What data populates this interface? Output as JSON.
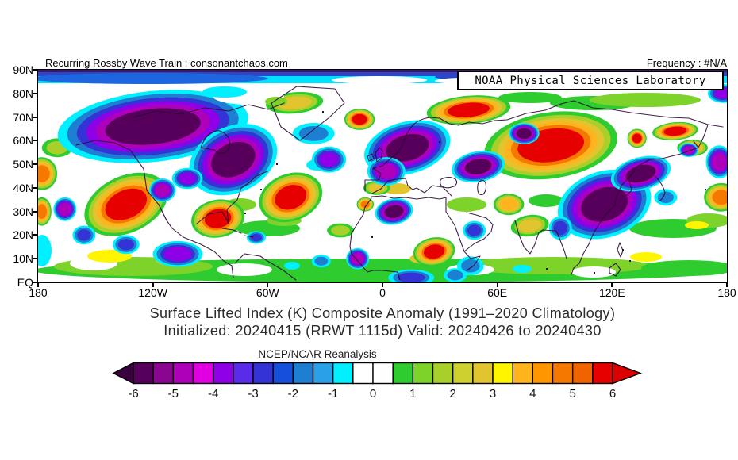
{
  "header": {
    "left_credit": "Recurring Rossby Wave Train : consonantchaos.com",
    "right_frequency": "Frequency : #N/A"
  },
  "map": {
    "credit_box": "NOAA Physical Sciences Laboratory",
    "lat_ticks": [
      "90N",
      "80N",
      "70N",
      "60N",
      "50N",
      "40N",
      "30N",
      "20N",
      "10N",
      "EQ"
    ],
    "lon_ticks": [
      "180",
      "120W",
      "60W",
      "0",
      "60E",
      "120E",
      "180"
    ]
  },
  "titles": {
    "line1": "Surface Lifted Index (K) Composite Anomaly (1991–2020 Climatology)",
    "line2": "Initialized: 20240415 (RRWT 1115d) Valid: 20240426 to 20240430"
  },
  "colorbar": {
    "label": "NCEP/NCAR Reanalysis",
    "ticks": [
      "-6",
      "-5",
      "-4",
      "-3",
      "-2",
      "-1",
      "0",
      "1",
      "2",
      "3",
      "4",
      "5",
      "6"
    ],
    "segments": [
      "#56005C",
      "#8A0690",
      "#AE00B8",
      "#E100E1",
      "#8F00E8",
      "#5A2BE8",
      "#3333D6",
      "#1450DC",
      "#1E7ED2",
      "#2AA0E8",
      "#00F0FF",
      "#FFFFFF",
      "#FFFFFF",
      "#2ECC2E",
      "#7ED32A",
      "#A9CF2A",
      "#CDD02E",
      "#E2C52E",
      "#FFF500",
      "#FFB41E",
      "#FF9600",
      "#F57800",
      "#F06400",
      "#E60000"
    ],
    "arrow_left_color": "#3A0040",
    "arrow_right_color": "#DC0000"
  },
  "chart_data": {
    "type": "heatmap",
    "title": "Surface Lifted Index (K) Composite Anomaly (1991–2020 Climatology)",
    "subtitle": "Initialized: 20240415 (RRWT 1115d) Valid: 20240426 to 20240430",
    "units": "K",
    "source_label": "NCEP/NCAR Reanalysis",
    "x_axis": {
      "ticks": [
        "180",
        "120W",
        "60W",
        "0",
        "60E",
        "120E",
        "180"
      ],
      "range_deg": [
        -180,
        180
      ]
    },
    "y_axis": {
      "ticks": [
        "EQ",
        "10N",
        "20N",
        "30N",
        "40N",
        "50N",
        "60N",
        "70N",
        "80N",
        "90N"
      ],
      "range_deg": [
        0,
        90
      ]
    },
    "scale": {
      "min": -6,
      "max": 6,
      "step": 0.5
    },
    "anomaly_features": [
      {
        "name": "NE Pacific warm",
        "lon": -134,
        "lat": 33,
        "value": 6,
        "rlon": 23,
        "rlat": 12,
        "rot": -25
      },
      {
        "name": "Gulf of Mexico / SE United States warm",
        "lon": -86,
        "lat": 27,
        "value": 6,
        "rlon": 14,
        "rlat": 8,
        "rot": -10
      },
      {
        "name": "Central North Atlantic warm",
        "lon": -48,
        "lat": 36,
        "value": 6,
        "rlon": 17,
        "rlat": 10,
        "rot": -20
      },
      {
        "name": "Iceland / NE Atlantic warm",
        "lon": -12,
        "lat": 69,
        "value": 6,
        "rlon": 8,
        "rlat": 4.5,
        "rot": 0
      },
      {
        "name": "Greenland warm",
        "lon": -46,
        "lat": 76,
        "value": 3,
        "rlon": 15,
        "rlat": 4.5,
        "rot": -5
      },
      {
        "name": "Barents Sea / NW Russia warm",
        "lon": 45,
        "lat": 73,
        "value": 6,
        "rlon": 22,
        "rlat": 6,
        "rot": -5
      },
      {
        "name": "Siberia warm",
        "lon": 88,
        "lat": 58,
        "value": 6,
        "rlon": 35,
        "rlat": 14,
        "rot": -8
      },
      {
        "name": "East Siberia warm band",
        "lon": 153,
        "lat": 64,
        "value": 6,
        "rlon": 12,
        "rlat": 3.8,
        "rot": -5
      },
      {
        "name": "East Siberia warm spot",
        "lon": 133,
        "lat": 61,
        "value": 6,
        "rlon": 5,
        "rlat": 4,
        "rot": 0
      },
      {
        "name": "Sudan / Sahel warm",
        "lon": 27,
        "lat": 13,
        "value": 6,
        "rlon": 11,
        "rlat": 6,
        "rot": -10
      },
      {
        "name": "Morocco warm",
        "lon": -9,
        "lat": 33,
        "value": 5,
        "rlon": 4.5,
        "rlat": 3,
        "rot": 0
      },
      {
        "name": "Iberia / W Mediterranean warm",
        "lon": -3,
        "lat": 40,
        "value": 3,
        "rlon": 7,
        "rlat": 3,
        "rot": 0
      },
      {
        "name": "India warm",
        "lon": 77,
        "lat": 24,
        "value": 3,
        "rlon": 10,
        "rlat": 4.5,
        "rot": -8
      },
      {
        "name": "Iran / Afghanistan warm",
        "lon": 66,
        "lat": 33,
        "value": 4,
        "rlon": 8,
        "rlat": 4.5,
        "rot": 0
      },
      {
        "name": "NW Pacific warm (date line)",
        "lon": 177,
        "lat": 36,
        "value": 5,
        "rlon": 9,
        "rlat": 6,
        "rot": 0
      },
      {
        "name": "N Pacific warm (west edge)",
        "lon": -178,
        "lat": 46,
        "value": 5,
        "rlon": 8,
        "rlat": 7,
        "rot": 0
      },
      {
        "name": "Subtropical Pacific warm (west edge)",
        "lon": -178,
        "lat": 30,
        "value": 5,
        "rlon": 5,
        "rlat": 6,
        "rot": 0
      },
      {
        "name": "Bering Sea warm",
        "lon": -170,
        "lat": 57,
        "value": 2,
        "rlon": 8,
        "rlat": 4,
        "rot": 0
      },
      {
        "name": "Subtropical Atlantic warm",
        "lon": -22,
        "lat": 22,
        "value": 2,
        "rlon": 7,
        "rlat": 3,
        "rot": 0
      },
      {
        "name": "Kamchatka coast warm",
        "lon": 162,
        "lat": 57,
        "value": 4,
        "rlon": 8,
        "rlat": 3.5,
        "rot": 0
      },
      {
        "name": "Alaska / NW Canada cold",
        "lon": -120,
        "lat": 66,
        "value": -6,
        "rlon": 50,
        "rlat": 15,
        "rot": -6
      },
      {
        "name": "E Canada / Great Lakes cold",
        "lon": -78,
        "lat": 52,
        "value": -6,
        "rlon": 24,
        "rlat": 14,
        "rot": -25
      },
      {
        "name": "Scandinavia / NW Europe cold",
        "lon": 13,
        "lat": 57,
        "value": -6,
        "rlon": 23,
        "rlat": 11,
        "rot": -15
      },
      {
        "name": "Western Europe cold",
        "lon": 2,
        "lat": 47,
        "value": -5,
        "rlon": 10,
        "rlat": 6,
        "rot": 0
      },
      {
        "name": "North Atlantic 50N cold",
        "lon": -28,
        "lat": 52,
        "value": -4,
        "rlon": 9,
        "rlat": 5.5,
        "rot": 0
      },
      {
        "name": "Greenland Sea cold",
        "lon": -36,
        "lat": 63,
        "value": -2,
        "rlon": 11,
        "rlat": 4.5,
        "rot": 0
      },
      {
        "name": "Algeria / NW Africa cold",
        "lon": 6,
        "lat": 30,
        "value": -6,
        "rlon": 10,
        "rlat": 5.5,
        "rot": -10
      },
      {
        "name": "West Africa / Guinea cold",
        "lon": -13,
        "lat": 10,
        "value": -5,
        "rlon": 6,
        "rlat": 4.5,
        "rot": 0
      },
      {
        "name": "Kazakhstan / Caspian cold",
        "lon": 50,
        "lat": 49,
        "value": -6,
        "rlon": 14,
        "rlat": 6.5,
        "rot": -10
      },
      {
        "name": "West Siberia cold spot",
        "lon": 74,
        "lat": 63,
        "value": -6,
        "rlon": 8,
        "rlat": 4.5,
        "rot": 0
      },
      {
        "name": "East Asia / China cold",
        "lon": 116,
        "lat": 33,
        "value": -6,
        "rlon": 25,
        "rlat": 14,
        "rot": -18
      },
      {
        "name": "NE Asia / Korea cold",
        "lon": 135,
        "lat": 46,
        "value": -6,
        "rlon": 16,
        "rlat": 7,
        "rot": -15
      },
      {
        "name": "Sea of Okhotsk cold spot",
        "lon": 160,
        "lat": 56,
        "value": -5,
        "rlon": 5,
        "rlat": 3,
        "rot": 0
      },
      {
        "name": "NW Pacific cold (east edge 50N)",
        "lon": 176,
        "lat": 51,
        "value": -5,
        "rlon": 7,
        "rlat": 7,
        "rot": 0
      },
      {
        "name": "Chukchi corner cold",
        "lon": 178,
        "lat": 80,
        "value": -4,
        "rlon": 8,
        "rlat": 4,
        "rot": 0
      },
      {
        "name": "Western United States cold",
        "lon": -115,
        "lat": 39,
        "value": -5,
        "rlon": 7,
        "rlat": 5,
        "rot": 0
      },
      {
        "name": "Central US plains cold",
        "lon": -102,
        "lat": 44,
        "value": -4,
        "rlon": 8,
        "rlat": 4.5,
        "rot": 0
      },
      {
        "name": "Central Pacific cold",
        "lon": -166,
        "lat": 31,
        "value": -5,
        "rlon": 6,
        "rlat": 5,
        "rot": 0
      },
      {
        "name": "Central Pacific cold blue",
        "lon": -156,
        "lat": 20,
        "value": -3,
        "rlon": 6,
        "rlat": 4,
        "rot": 0
      },
      {
        "name": "East Pacific ITCZ cold",
        "lon": -107,
        "lat": 12,
        "value": -4,
        "rlon": 13,
        "rlat": 5.5,
        "rot": 0
      },
      {
        "name": "Central tropical Pacific cold",
        "lon": -134,
        "lat": 16,
        "value": -3,
        "rlon": 7,
        "rlat": 4,
        "rot": 0
      },
      {
        "name": "Caribbean cold",
        "lon": -66,
        "lat": 19,
        "value": -3,
        "rlon": 5,
        "rlat": 2.7,
        "rot": 0
      },
      {
        "name": "Arabian Sea cold",
        "lon": 48,
        "lat": 22,
        "value": -3,
        "rlon": 6,
        "rlat": 4,
        "rot": 0
      },
      {
        "name": "Horn of Africa cold",
        "lon": 46,
        "lat": 7,
        "value": -2,
        "rlon": 7,
        "rlat": 4,
        "rot": 0
      },
      {
        "name": "Bay of Bengal cold",
        "lon": 93,
        "lat": 23,
        "value": -3,
        "rlon": 6,
        "rlat": 5,
        "rot": 0
      },
      {
        "name": "East of Japan cold",
        "lon": 148,
        "lat": 36,
        "value": -2,
        "rlon": 6,
        "rlat": 3.5,
        "rot": 0
      },
      {
        "name": "Equatorial Atlantic cold",
        "lon": -32,
        "lat": 9,
        "value": -2,
        "rlon": 5,
        "rlat": 2.7,
        "rot": 0
      },
      {
        "name": "Congo equatorial cold",
        "lon": 15,
        "lat": 2,
        "value": -3,
        "rlon": 12,
        "rlat": 3.5,
        "rot": 0
      },
      {
        "name": "East Africa equatorial cold",
        "lon": 38,
        "lat": 3,
        "value": -2,
        "rlon": 6,
        "rlat": 3,
        "rot": 0
      }
    ]
  }
}
